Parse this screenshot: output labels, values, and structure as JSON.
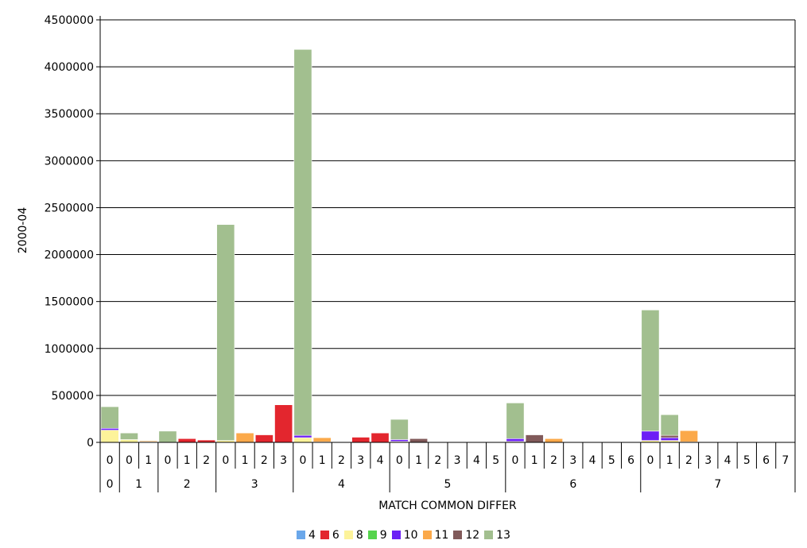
{
  "chart_data": {
    "type": "bar",
    "stacked": true,
    "xlabel": "MATCH COMMON DIFFER",
    "ylabel": "2000-04",
    "ylim": [
      0,
      4500000
    ],
    "yticks": [
      0,
      500000,
      1000000,
      1500000,
      2000000,
      2500000,
      3000000,
      3500000,
      4000000,
      4500000
    ],
    "grid": true,
    "legend_position": "bottom",
    "categories": [
      {
        "match": "0",
        "common": "0"
      },
      {
        "match": "1",
        "common": "0"
      },
      {
        "match": "1",
        "common": "1"
      },
      {
        "match": "2",
        "common": "0"
      },
      {
        "match": "2",
        "common": "1"
      },
      {
        "match": "2",
        "common": "2"
      },
      {
        "match": "3",
        "common": "0"
      },
      {
        "match": "3",
        "common": "1"
      },
      {
        "match": "3",
        "common": "2"
      },
      {
        "match": "3",
        "common": "3"
      },
      {
        "match": "4",
        "common": "0"
      },
      {
        "match": "4",
        "common": "1"
      },
      {
        "match": "4",
        "common": "2"
      },
      {
        "match": "4",
        "common": "3"
      },
      {
        "match": "4",
        "common": "4"
      },
      {
        "match": "5",
        "common": "0"
      },
      {
        "match": "5",
        "common": "1"
      },
      {
        "match": "5",
        "common": "2"
      },
      {
        "match": "5",
        "common": "3"
      },
      {
        "match": "5",
        "common": "4"
      },
      {
        "match": "5",
        "common": "5"
      },
      {
        "match": "6",
        "common": "0"
      },
      {
        "match": "6",
        "common": "1"
      },
      {
        "match": "6",
        "common": "2"
      },
      {
        "match": "6",
        "common": "3"
      },
      {
        "match": "6",
        "common": "4"
      },
      {
        "match": "6",
        "common": "5"
      },
      {
        "match": "6",
        "common": "6"
      },
      {
        "match": "7",
        "common": "0"
      },
      {
        "match": "7",
        "common": "1"
      },
      {
        "match": "7",
        "common": "2"
      },
      {
        "match": "7",
        "common": "3"
      },
      {
        "match": "7",
        "common": "4"
      },
      {
        "match": "7",
        "common": "5"
      },
      {
        "match": "7",
        "common": "6"
      },
      {
        "match": "7",
        "common": "7"
      }
    ],
    "series": [
      {
        "name": "4",
        "color": "#6aa7ea",
        "values": [
          0,
          0,
          0,
          0,
          0,
          0,
          0,
          0,
          0,
          0,
          0,
          0,
          0,
          0,
          0,
          0,
          0,
          0,
          0,
          0,
          0,
          0,
          0,
          0,
          0,
          0,
          0,
          0,
          0,
          0,
          0,
          0,
          0,
          0,
          0,
          0
        ]
      },
      {
        "name": "6",
        "color": "#e3262e",
        "values": [
          0,
          0,
          0,
          0,
          40000,
          25000,
          0,
          0,
          80000,
          400000,
          0,
          0,
          0,
          55000,
          100000,
          0,
          0,
          0,
          0,
          0,
          0,
          0,
          0,
          0,
          0,
          0,
          0,
          0,
          0,
          0,
          0,
          0,
          0,
          0,
          0,
          0
        ]
      },
      {
        "name": "8",
        "color": "#fdf39a",
        "values": [
          130000,
          30000,
          8000,
          0,
          0,
          0,
          20000,
          0,
          0,
          0,
          50000,
          5000,
          5000,
          0,
          0,
          10000,
          0,
          3000,
          0,
          0,
          0,
          10000,
          0,
          0,
          0,
          0,
          0,
          0,
          20000,
          20000,
          5000,
          3000,
          0,
          0,
          0,
          0
        ]
      },
      {
        "name": "9",
        "color": "#55d44c",
        "values": [
          0,
          0,
          0,
          0,
          0,
          0,
          0,
          0,
          0,
          0,
          0,
          0,
          0,
          0,
          0,
          0,
          0,
          0,
          0,
          0,
          0,
          0,
          0,
          0,
          0,
          0,
          0,
          0,
          0,
          0,
          0,
          0,
          0,
          0,
          0,
          0
        ]
      },
      {
        "name": "10",
        "color": "#6c1ff5",
        "values": [
          20000,
          0,
          0,
          0,
          0,
          0,
          0,
          0,
          0,
          0,
          25000,
          0,
          0,
          0,
          0,
          20000,
          0,
          0,
          0,
          0,
          0,
          30000,
          0,
          0,
          0,
          0,
          0,
          0,
          100000,
          30000,
          0,
          0,
          0,
          0,
          0,
          0
        ]
      },
      {
        "name": "11",
        "color": "#fba94a",
        "values": [
          0,
          0,
          10000,
          0,
          0,
          0,
          0,
          100000,
          0,
          0,
          0,
          45000,
          5000,
          0,
          0,
          0,
          0,
          0,
          0,
          0,
          0,
          0,
          0,
          40000,
          0,
          0,
          0,
          0,
          0,
          0,
          120000,
          0,
          0,
          0,
          0,
          0
        ]
      },
      {
        "name": "12",
        "color": "#815a5a",
        "values": [
          0,
          0,
          0,
          0,
          0,
          0,
          0,
          0,
          0,
          0,
          0,
          0,
          0,
          0,
          0,
          0,
          40000,
          0,
          0,
          0,
          0,
          0,
          80000,
          0,
          0,
          0,
          0,
          0,
          0,
          25000,
          0,
          0,
          0,
          0,
          0,
          0
        ]
      },
      {
        "name": "13",
        "color": "#a2bf8f",
        "values": [
          230000,
          70000,
          0,
          120000,
          0,
          0,
          2300000,
          0,
          0,
          0,
          4110000,
          0,
          0,
          0,
          0,
          215000,
          0,
          0,
          0,
          0,
          0,
          380000,
          0,
          0,
          0,
          0,
          0,
          0,
          1290000,
          220000,
          0,
          0,
          0,
          0,
          0,
          0
        ]
      }
    ]
  }
}
